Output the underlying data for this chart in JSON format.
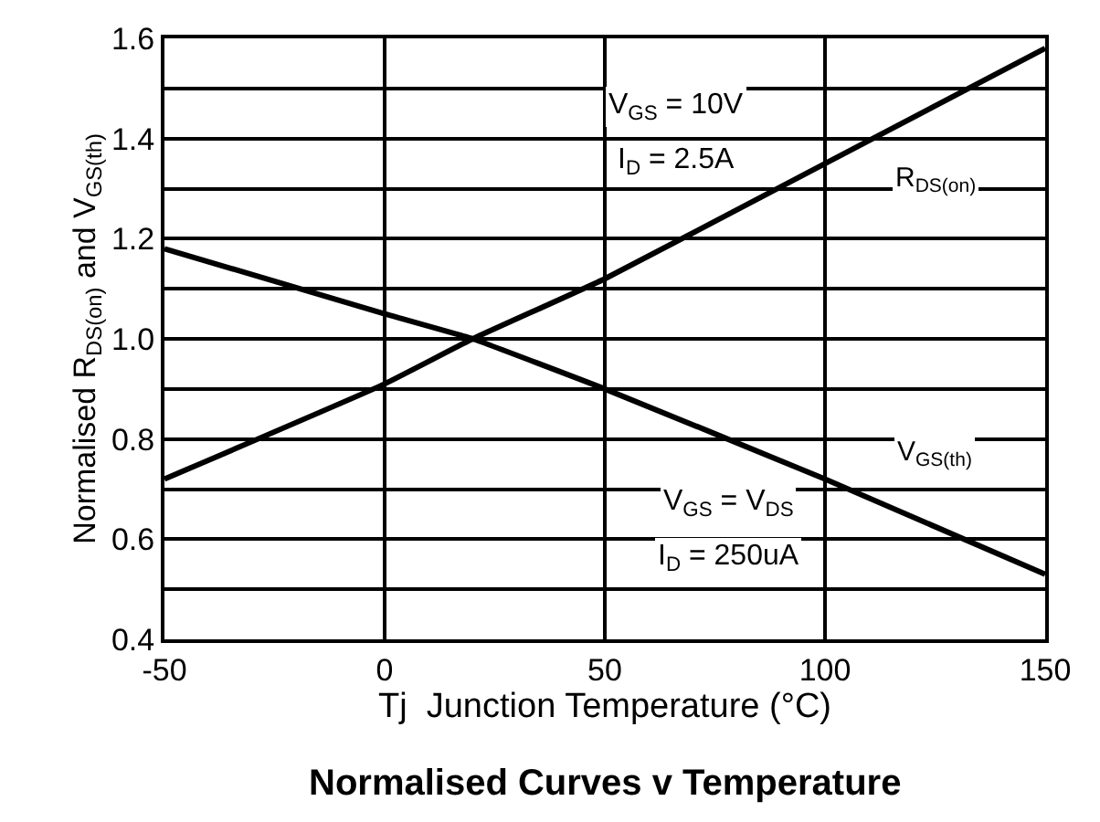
{
  "chart_data": {
    "type": "line",
    "title": "Normalised Curves v Temperature",
    "xlabel": "Tj  Junction Temperature (°C)",
    "ylabel": "Normalised R$_{DS(on)}$ and V$_{GS(th)}$",
    "x": [
      -50,
      0,
      20,
      50,
      100,
      150
    ],
    "series": [
      {
        "name": "R$_{DS(on)}$",
        "color": "#000000",
        "values": [
          0.72,
          0.91,
          1.0,
          1.12,
          1.35,
          1.58
        ]
      },
      {
        "name": "V$_{GS(th)}$",
        "color": "#000000",
        "values": [
          1.18,
          1.05,
          1.0,
          0.9,
          0.72,
          0.53
        ]
      }
    ],
    "annotations": [
      "V$_{GS}$ = 10V",
      "I$_{D}$ = 2.5A",
      "V$_{GS}$ = V$_{DS}$",
      "I$_{D}$ = 250uA"
    ],
    "xlim": [
      -50,
      150
    ],
    "xticks": [
      -50,
      0,
      50,
      100,
      150
    ],
    "ylim": [
      0.4,
      1.6
    ],
    "yticks": [
      0.4,
      {
        "value": 0.5,
        "label": null
      },
      0.6,
      {
        "value": 0.7,
        "label": null
      },
      0.8,
      {
        "value": 0.9,
        "label": null
      },
      "1.0",
      {
        "value": 1.1,
        "label": null
      },
      1.2,
      {
        "value": 1.3,
        "label": null
      },
      1.4,
      {
        "value": 1.5,
        "label": null
      },
      1.6
    ],
    "grid": true,
    "legend": false,
    "marker": "none",
    "line_style": "solid"
  }
}
